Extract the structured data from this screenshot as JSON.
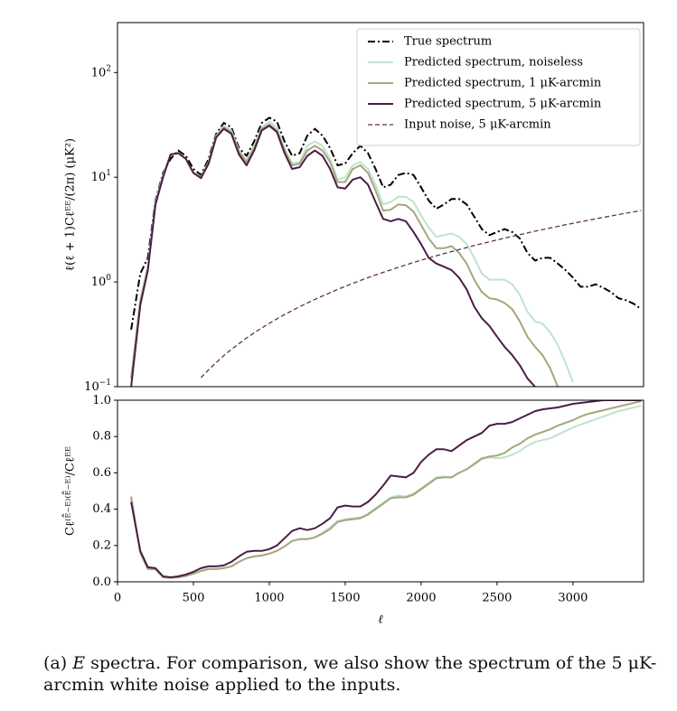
{
  "chart_data": [
    {
      "type": "line",
      "log_y": true,
      "legend": "upper right",
      "ylabel": "ℓ(ℓ + 1)Cℓᴱᴱ/(2π) (μK²)",
      "xlim": [
        0,
        3465
      ],
      "ylim": [
        0.1,
        300
      ],
      "yticks": [
        {
          "value": 0.1,
          "label": "10",
          "exponent": "−1"
        },
        {
          "value": 1,
          "label": "10",
          "exponent": "0"
        },
        {
          "value": 10,
          "label": "10",
          "exponent": "1"
        },
        {
          "value": 100,
          "label": "10",
          "exponent": "2"
        }
      ],
      "x": [
        90,
        150,
        200,
        250,
        300,
        350,
        400,
        450,
        500,
        550,
        600,
        650,
        700,
        750,
        800,
        850,
        900,
        950,
        1000,
        1050,
        1100,
        1150,
        1200,
        1250,
        1300,
        1350,
        1400,
        1450,
        1500,
        1550,
        1600,
        1650,
        1700,
        1750,
        1800,
        1850,
        1900,
        1950,
        2000,
        2050,
        2100,
        2150,
        2200,
        2250,
        2300,
        2350,
        2400,
        2450,
        2500,
        2550,
        2600,
        2650,
        2700,
        2750,
        2800,
        2850,
        2900,
        2950,
        3000,
        3050,
        3100,
        3150,
        3200,
        3250,
        3300,
        3350,
        3400,
        3450
      ],
      "series": [
        {
          "name": "True spectrum",
          "color": "#000000",
          "dash": "dashdot",
          "values": [
            0.35,
            1.2,
            1.7,
            6,
            11,
            15,
            18,
            16,
            12,
            10.5,
            15,
            26,
            33,
            30,
            19,
            16,
            22,
            33,
            37,
            34,
            22,
            16,
            17,
            25,
            29,
            25,
            19,
            13,
            13.5,
            17,
            20,
            17,
            12,
            8,
            8.5,
            10.5,
            11,
            10.5,
            8,
            6,
            5,
            5.5,
            6.2,
            6.2,
            5.5,
            4.2,
            3.2,
            2.8,
            3,
            3.2,
            3,
            2.6,
            1.9,
            1.6,
            1.7,
            1.7,
            1.5,
            1.3,
            1.1,
            0.9,
            0.9,
            0.95,
            0.88,
            0.8,
            0.7,
            0.67,
            0.62,
            0.55
          ]
        },
        {
          "name": "Predicted spectrum, noiseless",
          "color": "#bfe3cf",
          "dash": "solid",
          "values": [
            0.12,
            0.7,
            1.4,
            5.8,
            10.5,
            16.5,
            17,
            15,
            11,
            10,
            14,
            25,
            31,
            28,
            18,
            14.5,
            20,
            30,
            34,
            30,
            19,
            13.5,
            14,
            20,
            22,
            20,
            15,
            9.5,
            10,
            13,
            14,
            12,
            8.5,
            5.5,
            5.8,
            6.5,
            6.5,
            5.8,
            4.3,
            3.3,
            2.7,
            2.8,
            2.9,
            2.7,
            2.3,
            1.7,
            1.2,
            1.05,
            1.05,
            1.05,
            0.95,
            0.75,
            0.52,
            0.42,
            0.4,
            0.33,
            0.25,
            0.17,
            0.11,
            null,
            null,
            null,
            null,
            null,
            null,
            null,
            null,
            null
          ]
        },
        {
          "name": "Predicted spectrum, 1 μK-arcmin",
          "color": "#a3a87a",
          "dash": "solid",
          "values": [
            0.12,
            0.65,
            1.35,
            5.6,
            10.3,
            16.5,
            17,
            15,
            11,
            10,
            14,
            25,
            30,
            27,
            17.5,
            14,
            19,
            29,
            32,
            28,
            18,
            13,
            13.5,
            18,
            20,
            18,
            14,
            9,
            9,
            12,
            13,
            11,
            7.5,
            4.8,
            4.9,
            5.5,
            5.4,
            4.7,
            3.5,
            2.6,
            2.1,
            2.1,
            2.2,
            1.9,
            1.5,
            1.05,
            0.8,
            0.7,
            0.68,
            0.63,
            0.55,
            0.42,
            0.3,
            0.24,
            0.2,
            0.15,
            0.1,
            null,
            null,
            null,
            null,
            null,
            null,
            null,
            null,
            null,
            null,
            null
          ]
        },
        {
          "name": "Predicted spectrum, 5 μK-arcmin",
          "color": "#4b1d47",
          "dash": "solid",
          "values": [
            0.1,
            0.6,
            1.3,
            5.5,
            10,
            16.5,
            17,
            15,
            11,
            9.8,
            13.5,
            24,
            29,
            26,
            16.5,
            13,
            18,
            28,
            31,
            27,
            17,
            12,
            12.5,
            16,
            18,
            16,
            12,
            8,
            7.8,
            9.5,
            10,
            8.5,
            5.8,
            4,
            3.8,
            4,
            3.8,
            3,
            2.3,
            1.7,
            1.5,
            1.4,
            1.3,
            1.1,
            0.85,
            0.58,
            0.45,
            0.38,
            0.3,
            0.24,
            0.2,
            0.16,
            0.12,
            0.1,
            null,
            null,
            null,
            null,
            null,
            null,
            null,
            null,
            null,
            null,
            null,
            null,
            null,
            null
          ]
        },
        {
          "name": "Input noise, 5 μK-arcmin",
          "color": "#5e3355",
          "dash": "dashed",
          "values": [
            null,
            null,
            null,
            null,
            null,
            null,
            null,
            null,
            null,
            0.122,
            0.145,
            0.17,
            0.198,
            0.227,
            0.258,
            0.291,
            0.327,
            0.364,
            0.403,
            0.444,
            0.488,
            0.533,
            0.581,
            0.63,
            0.681,
            0.735,
            0.79,
            0.848,
            0.907,
            0.969,
            1.032,
            1.098,
            1.165,
            1.235,
            1.306,
            1.38,
            1.455,
            1.533,
            1.613,
            1.694,
            1.778,
            1.864,
            1.951,
            2.041,
            2.133,
            2.227,
            2.323,
            2.421,
            2.521,
            2.623,
            2.727,
            2.834,
            2.942,
            3.052,
            3.164,
            3.279,
            3.395,
            3.514,
            3.634,
            3.757,
            3.881,
            4.008,
            4.136,
            4.266,
            4.399,
            4.533,
            4.67,
            4.808
          ]
        }
      ]
    },
    {
      "type": "line",
      "xlabel": "ℓ",
      "ylabel": "Cℓ⁽ᴱ̂⁻ᴱ⁾⁽ᴱ̂⁻ᴱ⁾/Cℓᴱᴱ",
      "xlim": [
        0,
        3465
      ],
      "ylim": [
        0,
        1
      ],
      "xticks": [
        0,
        500,
        1000,
        1500,
        2000,
        2500,
        3000
      ],
      "yticks": [
        {
          "value": 0,
          "label": "0.0"
        },
        0.2,
        0.4,
        0.6,
        0.8,
        {
          "value": 1,
          "label": "1.0"
        }
      ],
      "x": [
        90,
        150,
        200,
        250,
        300,
        350,
        400,
        450,
        500,
        550,
        600,
        650,
        700,
        750,
        800,
        850,
        900,
        950,
        1000,
        1050,
        1100,
        1150,
        1200,
        1250,
        1300,
        1350,
        1400,
        1450,
        1500,
        1550,
        1600,
        1650,
        1700,
        1750,
        1800,
        1850,
        1900,
        1950,
        2000,
        2050,
        2100,
        2150,
        2200,
        2250,
        2300,
        2350,
        2400,
        2450,
        2500,
        2550,
        2600,
        2650,
        2700,
        2750,
        2800,
        2850,
        2900,
        2950,
        3000,
        3050,
        3100,
        3150,
        3200,
        3250,
        3300,
        3350,
        3400,
        3450
      ],
      "series": [
        {
          "color": "#bfe3cf",
          "dash": "solid",
          "values": [
            0.46,
            0.16,
            0.07,
            0.068,
            0.025,
            0.022,
            0.025,
            0.032,
            0.045,
            0.06,
            0.07,
            0.07,
            0.075,
            0.085,
            0.11,
            0.13,
            0.14,
            0.145,
            0.155,
            0.17,
            0.195,
            0.225,
            0.235,
            0.235,
            0.245,
            0.27,
            0.3,
            0.335,
            0.345,
            0.35,
            0.355,
            0.375,
            0.405,
            0.435,
            0.465,
            0.475,
            0.47,
            0.485,
            0.515,
            0.545,
            0.575,
            0.58,
            0.575,
            0.6,
            0.62,
            0.645,
            0.675,
            0.685,
            0.68,
            0.685,
            0.7,
            0.72,
            0.75,
            0.77,
            0.78,
            0.79,
            0.81,
            0.83,
            0.85,
            0.865,
            0.88,
            0.895,
            0.91,
            0.925,
            0.94,
            0.95,
            0.96,
            0.97
          ]
        },
        {
          "color": "#a3a87a",
          "dash": "solid",
          "values": [
            0.47,
            0.16,
            0.07,
            0.07,
            0.025,
            0.022,
            0.025,
            0.032,
            0.045,
            0.06,
            0.07,
            0.07,
            0.075,
            0.085,
            0.11,
            0.13,
            0.14,
            0.145,
            0.155,
            0.17,
            0.195,
            0.225,
            0.235,
            0.235,
            0.245,
            0.265,
            0.29,
            0.33,
            0.34,
            0.345,
            0.35,
            0.37,
            0.4,
            0.43,
            0.46,
            0.465,
            0.465,
            0.48,
            0.51,
            0.54,
            0.57,
            0.575,
            0.575,
            0.6,
            0.62,
            0.65,
            0.68,
            0.69,
            0.695,
            0.71,
            0.74,
            0.76,
            0.79,
            0.81,
            0.825,
            0.84,
            0.86,
            0.875,
            0.89,
            0.91,
            0.925,
            0.935,
            0.945,
            0.955,
            0.965,
            0.975,
            0.985,
            0.995
          ]
        },
        {
          "color": "#4b1d47",
          "dash": "solid",
          "values": [
            0.44,
            0.17,
            0.08,
            0.075,
            0.03,
            0.025,
            0.03,
            0.04,
            0.055,
            0.075,
            0.085,
            0.085,
            0.09,
            0.11,
            0.14,
            0.165,
            0.17,
            0.17,
            0.18,
            0.2,
            0.24,
            0.28,
            0.295,
            0.285,
            0.295,
            0.32,
            0.35,
            0.41,
            0.42,
            0.415,
            0.415,
            0.44,
            0.48,
            0.53,
            0.585,
            0.58,
            0.575,
            0.6,
            0.66,
            0.7,
            0.73,
            0.73,
            0.72,
            0.75,
            0.78,
            0.8,
            0.82,
            0.86,
            0.87,
            0.87,
            0.88,
            0.9,
            0.92,
            0.94,
            0.95,
            0.955,
            0.96,
            0.97,
            0.98,
            0.985,
            0.99,
            0.995,
            1,
            1,
            1,
            1,
            1,
            1
          ]
        }
      ]
    }
  ],
  "caption": {
    "label": "(a)",
    "emph": "E",
    "text": "spectra. For comparison, we also show the spectrum of the 5 μK-arcmin white noise applied to the inputs."
  }
}
